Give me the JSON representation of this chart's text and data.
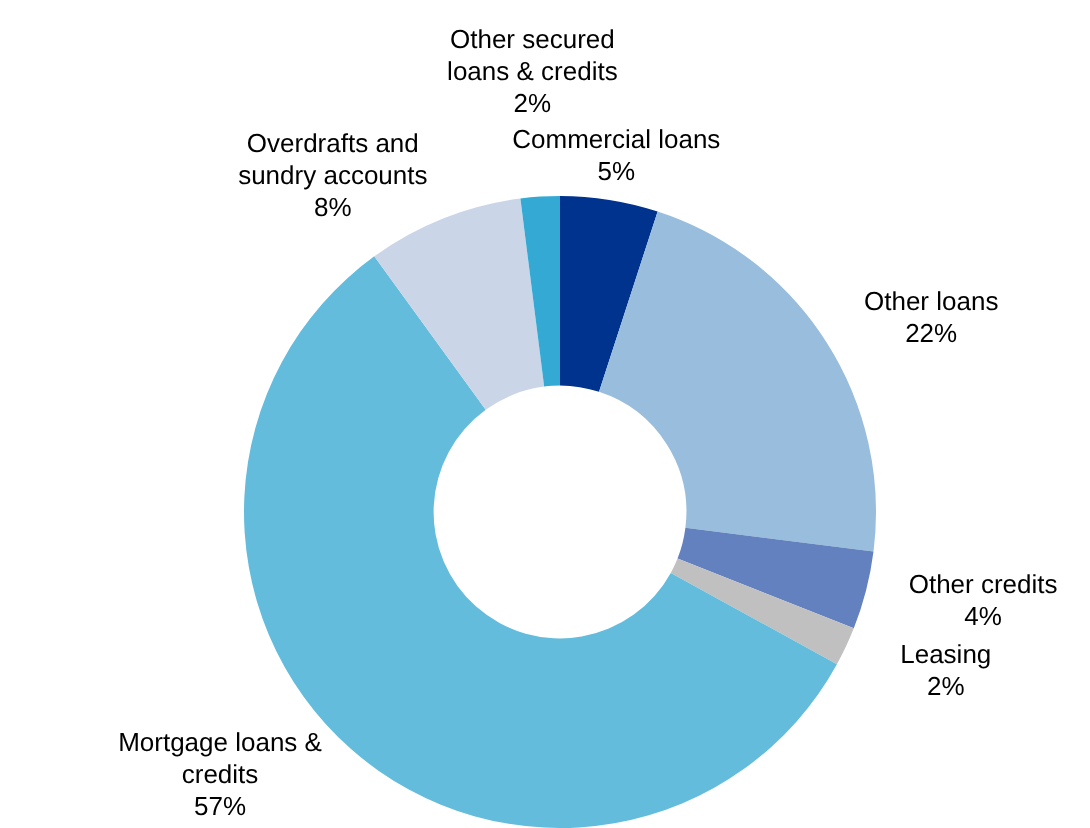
{
  "chart_data": {
    "type": "donut",
    "categories": [
      "Commercial loans",
      "Other loans",
      "Other credits",
      "Leasing",
      "Mortgage loans & credits",
      "Overdrafts and sundry accounts",
      "Other secured loans & credits"
    ],
    "values": [
      5,
      22,
      4,
      2,
      57,
      8,
      2
    ],
    "value_labels": [
      "5%",
      "22%",
      "4%",
      "2%",
      "57%",
      "8%",
      "2%"
    ],
    "colors": [
      "#00338d",
      "#98bddd",
      "#6481bf",
      "#c0c0c0",
      "#63bcdc",
      "#cbd5e8",
      "#34a9d4"
    ],
    "legend": false
  }
}
